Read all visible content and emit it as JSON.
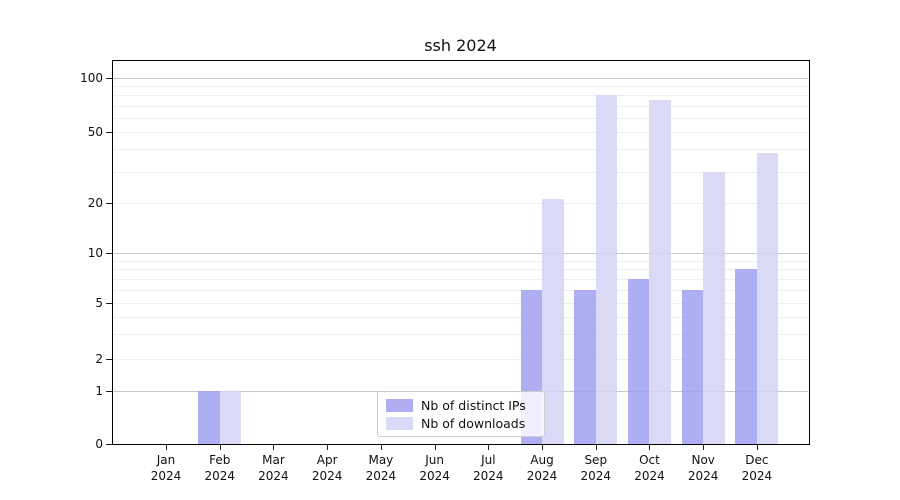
{
  "chart_data": {
    "type": "bar",
    "title": "ssh 2024",
    "x_tick_labels": [
      "Jan",
      "Feb",
      "Mar",
      "Apr",
      "May",
      "Jun",
      "Jul",
      "Aug",
      "Sep",
      "Oct",
      "Nov",
      "Dec"
    ],
    "x_tick_sublabel": "2024",
    "y_ticks": [
      0,
      1,
      2,
      5,
      10,
      20,
      50,
      100
    ],
    "y_minor_gridlines": [
      2,
      3,
      4,
      5,
      6,
      7,
      8,
      9,
      20,
      30,
      40,
      50,
      60,
      70,
      80,
      90
    ],
    "y_major_gridlines": [
      1,
      10,
      100
    ],
    "y_scale": "symlog",
    "ylim": [
      0,
      127
    ],
    "grid": true,
    "legend_position": "lower-center",
    "series": [
      {
        "name": "Nb of distinct IPs",
        "color": "#a0a0f0",
        "values": [
          0,
          1,
          0,
          0,
          0,
          0,
          0,
          6,
          6,
          7,
          6,
          8
        ]
      },
      {
        "name": "Nb of downloads",
        "color": "#d4d4f6",
        "values": [
          0,
          1,
          0,
          0,
          0,
          0,
          0,
          21,
          80,
          75,
          30,
          38
        ]
      }
    ]
  }
}
